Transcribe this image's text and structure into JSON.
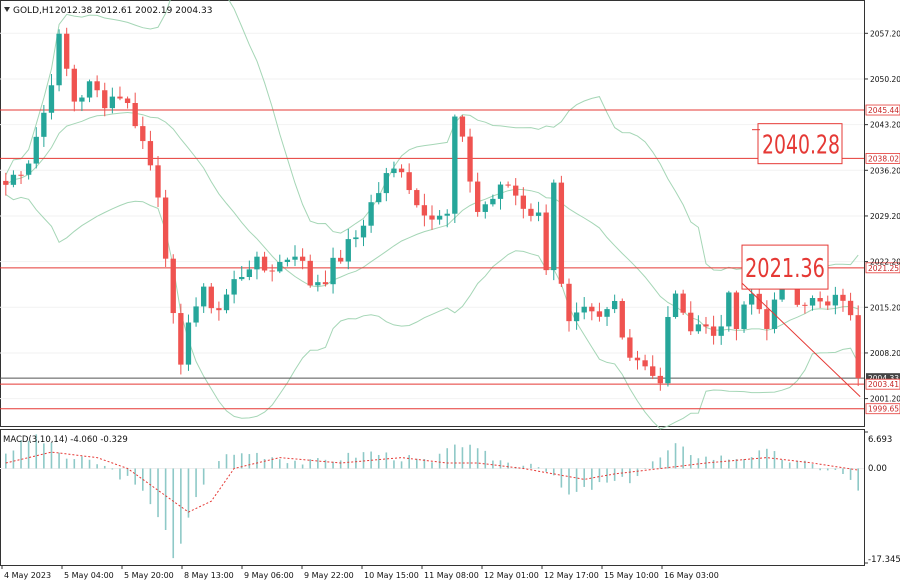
{
  "symbol_header": {
    "symbol": "GOLD,H1",
    "ohlc": "2012.38 2012.61 2002.19 2004.33"
  },
  "colors": {
    "bull": "#26a69a",
    "bear": "#ef5350",
    "band": "#a5d6b6",
    "level_line": "#e53935",
    "annotation": "#e53935",
    "current_line": "#555555",
    "macd_hist": "#8ec9c7",
    "macd_signal": "#e53935"
  },
  "macd_panel": {
    "title": "MACD(3,10,14) -4.060 -0.329",
    "ticks": [
      "6.693",
      "0.00",
      "-17.345"
    ]
  },
  "annotations": [
    {
      "label": "2040.28",
      "price": 2040.28
    },
    {
      "label": "2021.36",
      "price": 2021.36
    }
  ],
  "chart_data": [
    {
      "type": "candlestick",
      "title": "GOLD,H1",
      "ylim": [
        1997.0,
        2062.0
      ],
      "y_ticks": [
        "2057.20",
        "2050.20",
        "2043.20",
        "2036.20",
        "2029.20",
        "2022.20",
        "2015.20",
        "2008.20",
        "2001.20"
      ],
      "x_ticks": [
        "4 May 2023",
        "5 May 04:00",
        "5 May 20:00",
        "8 May 13:00",
        "9 May 06:00",
        "9 May 22:00",
        "10 May 15:00",
        "11 May 08:00",
        "12 May 01:00",
        "12 May 17:00",
        "15 May 10:00",
        "16 May 03:00"
      ],
      "price_levels": [
        {
          "label": "2045.44",
          "value": 2045.44
        },
        {
          "label": "2038.02",
          "value": 2038.02
        },
        {
          "label": "2021.25",
          "value": 2021.25
        },
        {
          "label": "2004.33",
          "value": 2004.33,
          "kind": "current"
        },
        {
          "label": "2003.41",
          "value": 2003.41
        },
        {
          "label": "1999.65",
          "value": 1999.65
        }
      ],
      "close_path": [
        [
          0,
          2034
        ],
        [
          3,
          2038
        ],
        [
          5,
          2045
        ],
        [
          7,
          2056
        ],
        [
          9,
          2047
        ],
        [
          11,
          2049
        ],
        [
          13,
          2047
        ],
        [
          15,
          2048
        ],
        [
          17,
          2044
        ],
        [
          19,
          2037
        ],
        [
          20,
          2033
        ],
        [
          21,
          2024
        ],
        [
          22,
          2013
        ],
        [
          23,
          2005
        ],
        [
          24,
          2014
        ],
        [
          26,
          2017
        ],
        [
          28,
          2015
        ],
        [
          30,
          2019
        ],
        [
          32,
          2022
        ],
        [
          34,
          2021
        ],
        [
          36,
          2022
        ],
        [
          38,
          2024
        ],
        [
          40,
          2019
        ],
        [
          42,
          2020
        ],
        [
          44,
          2023
        ],
        [
          46,
          2026
        ],
        [
          48,
          2031
        ],
        [
          50,
          2035
        ],
        [
          52,
          2037
        ],
        [
          54,
          2031
        ],
        [
          56,
          2030
        ],
        [
          58,
          2029
        ],
        [
          59,
          2044
        ],
        [
          60,
          2040
        ],
        [
          62,
          2030
        ],
        [
          64,
          2032
        ],
        [
          66,
          2034
        ],
        [
          68,
          2031
        ],
        [
          70,
          2029
        ],
        [
          71,
          2022
        ],
        [
          72,
          2035
        ],
        [
          73,
          2018
        ],
        [
          74,
          2012
        ],
        [
          76,
          2014
        ],
        [
          78,
          2013
        ],
        [
          80,
          2016
        ],
        [
          82,
          2008
        ],
        [
          84,
          2007
        ],
        [
          86,
          2003
        ],
        [
          87,
          2013
        ],
        [
          88,
          2018
        ],
        [
          89,
          2013
        ],
        [
          91,
          2013
        ],
        [
          93,
          2011
        ],
        [
          95,
          2016
        ],
        [
          96,
          2012
        ],
        [
          98,
          2017
        ],
        [
          100,
          2013
        ],
        [
          102,
          2018
        ],
        [
          103,
          2021
        ],
        [
          104,
          2017
        ],
        [
          106,
          2016
        ],
        [
          108,
          2015
        ],
        [
          110,
          2017
        ],
        [
          111,
          2013
        ],
        [
          112,
          2004.33
        ]
      ],
      "macd_hist_path": [
        [
          0,
          3
        ],
        [
          4,
          6
        ],
        [
          8,
          2
        ],
        [
          12,
          1
        ],
        [
          16,
          -2
        ],
        [
          19,
          -6
        ],
        [
          21,
          -11
        ],
        [
          22,
          -17
        ],
        [
          23,
          -14
        ],
        [
          25,
          -5
        ],
        [
          28,
          2
        ],
        [
          32,
          3
        ],
        [
          36,
          2
        ],
        [
          40,
          1
        ],
        [
          44,
          2
        ],
        [
          48,
          3
        ],
        [
          52,
          2
        ],
        [
          56,
          1
        ],
        [
          58,
          3
        ],
        [
          59,
          5
        ],
        [
          62,
          3
        ],
        [
          66,
          1
        ],
        [
          70,
          1
        ],
        [
          72,
          -2
        ],
        [
          74,
          -5
        ],
        [
          78,
          -3
        ],
        [
          82,
          -2
        ],
        [
          86,
          2
        ],
        [
          88,
          4
        ],
        [
          92,
          2
        ],
        [
          96,
          2
        ],
        [
          100,
          3
        ],
        [
          104,
          1
        ],
        [
          108,
          0
        ],
        [
          110,
          -1
        ],
        [
          112,
          -4
        ]
      ],
      "macd_signal_path": [
        [
          0,
          1
        ],
        [
          6,
          3
        ],
        [
          12,
          2
        ],
        [
          16,
          0
        ],
        [
          20,
          -4
        ],
        [
          24,
          -8
        ],
        [
          27,
          -6
        ],
        [
          30,
          0
        ],
        [
          36,
          2
        ],
        [
          44,
          1
        ],
        [
          52,
          2
        ],
        [
          58,
          1
        ],
        [
          62,
          1
        ],
        [
          68,
          0
        ],
        [
          72,
          -1
        ],
        [
          76,
          -2
        ],
        [
          80,
          -1
        ],
        [
          86,
          0
        ],
        [
          92,
          1
        ],
        [
          100,
          2
        ],
        [
          106,
          1
        ],
        [
          112,
          -0.3
        ]
      ]
    }
  ]
}
